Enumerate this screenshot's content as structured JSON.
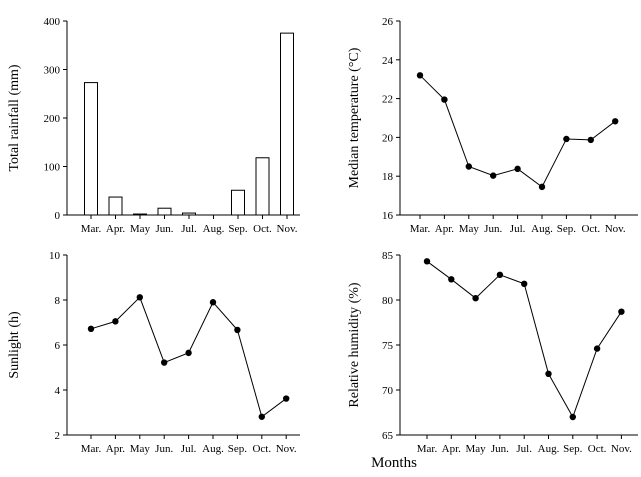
{
  "shared_xlabel": "Months",
  "chart_data": [
    {
      "type": "bar",
      "title": "",
      "xlabel": "",
      "ylabel": "Total rainfall (mm)",
      "categories": [
        "Mar.",
        "Apr.",
        "May",
        "Jun.",
        "Jul.",
        "Aug.",
        "Sep.",
        "Oct.",
        "Nov."
      ],
      "values": [
        273,
        37,
        2,
        14,
        4,
        0,
        51,
        118,
        375
      ],
      "ylim": [
        0,
        400
      ],
      "yticks": [
        0,
        100,
        200,
        300,
        400
      ],
      "grid": false,
      "bar_fill": "#ffffff",
      "bar_stroke": "#000000"
    },
    {
      "type": "line",
      "title": "",
      "xlabel": "",
      "ylabel": "Median temperature (°C)",
      "categories": [
        "Mar.",
        "Apr.",
        "May",
        "Jun.",
        "Jul.",
        "Aug.",
        "Sep.",
        "Oct.",
        "Nov."
      ],
      "values": [
        23.2,
        21.95,
        18.5,
        18.03,
        18.38,
        17.45,
        19.92,
        19.87,
        20.83
      ],
      "ylim": [
        16,
        26
      ],
      "yticks": [
        16,
        18,
        20,
        22,
        24,
        26
      ],
      "grid": false,
      "marker": "circle",
      "line_color": "#000000"
    },
    {
      "type": "line",
      "title": "",
      "xlabel": "",
      "ylabel": "Sunlight (h)",
      "categories": [
        "Mar.",
        "Apr.",
        "May",
        "Jun.",
        "Jul.",
        "Aug.",
        "Sep.",
        "Oct.",
        "Nov."
      ],
      "values": [
        6.72,
        7.05,
        8.12,
        5.22,
        5.65,
        7.9,
        6.67,
        2.81,
        3.62
      ],
      "ylim": [
        2,
        10
      ],
      "yticks": [
        2,
        4,
        6,
        8,
        10
      ],
      "grid": false,
      "marker": "circle",
      "line_color": "#000000"
    },
    {
      "type": "line",
      "title": "",
      "xlabel": "",
      "ylabel": "Relative humidity (%)",
      "categories": [
        "Mar.",
        "Apr.",
        "May",
        "Jun.",
        "Jul.",
        "Aug.",
        "Sep.",
        "Oct.",
        "Nov."
      ],
      "values": [
        84.3,
        82.3,
        80.2,
        82.8,
        81.8,
        71.8,
        67.0,
        74.6,
        78.7
      ],
      "ylim": [
        65,
        85
      ],
      "yticks": [
        65,
        70,
        75,
        80,
        85
      ],
      "grid": false,
      "marker": "circle",
      "line_color": "#000000"
    }
  ]
}
